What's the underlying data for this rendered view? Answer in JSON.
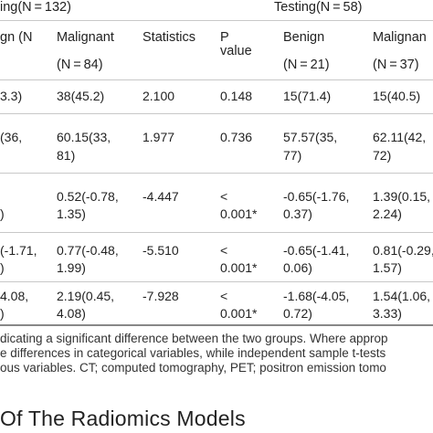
{
  "table": {
    "group_headers": {
      "training": "ing(N = 132)",
      "testing": "Testing(N = 58)"
    },
    "columns": {
      "benign_train_l1": "gn (N",
      "malignant_train_l1": "Malignant",
      "malignant_train_l2": "(N = 84)",
      "statistics": "Statistics",
      "pvalue_l1": "P",
      "pvalue_l2": "value",
      "benign_test_l1": "Benign",
      "benign_test_l2": "(N = 21)",
      "malignant_test_l1": "Malignan",
      "malignant_test_l2": "(N = 37)"
    },
    "rows": [
      {
        "benign_train": [
          "3.3)"
        ],
        "malignant_train": [
          "38(45.2)"
        ],
        "statistics": [
          "2.100"
        ],
        "pvalue": [
          "0.148"
        ],
        "benign_test": [
          "15(71.4)"
        ],
        "malignant_test": [
          "15(40.5)"
        ]
      },
      {
        "benign_train": [
          "(36,"
        ],
        "malignant_train": [
          "60.15(33,",
          "81)"
        ],
        "statistics": [
          "1.977"
        ],
        "pvalue": [
          "0.736"
        ],
        "benign_test": [
          "57.57(35,",
          "77)"
        ],
        "malignant_test": [
          "62.11(42,",
          "72)"
        ]
      },
      {
        "benign_train": [
          "",
          ")"
        ],
        "malignant_train": [
          "0.52(-0.78,",
          "1.35)"
        ],
        "statistics": [
          "-4.447"
        ],
        "pvalue": [
          "<",
          "0.001*"
        ],
        "benign_test": [
          "-0.65(-1.76,",
          "0.37)"
        ],
        "malignant_test": [
          "1.39(0.15,",
          "2.24)"
        ]
      },
      {
        "benign_train": [
          "(-1.71,",
          ")"
        ],
        "malignant_train": [
          "0.77(-0.48,",
          "1.99)"
        ],
        "statistics": [
          "-5.510"
        ],
        "pvalue": [
          "<",
          "0.001*"
        ],
        "benign_test": [
          "-0.65(-1.41,",
          "0.06)"
        ],
        "malignant_test": [
          "0.81(-0.29,",
          "1.57)"
        ]
      },
      {
        "benign_train": [
          "4.08,",
          ")"
        ],
        "malignant_train": [
          "2.19(0.45,",
          "4.08)"
        ],
        "statistics": [
          "-7.928"
        ],
        "pvalue": [
          "<",
          "0.001*"
        ],
        "benign_test": [
          "-1.68(-4.05,",
          "0.72)"
        ],
        "malignant_test": [
          "1.54(1.06,",
          "3.33)"
        ]
      }
    ]
  },
  "footnote": {
    "lines": [
      "dicating a significant difference between the two groups. Where approp",
      "e differences in categorical variables, while independent sample t-tests",
      "ous variables. CT; computed tomography, PET; positron emission tomo"
    ]
  },
  "section": {
    "heading": "Of The Radiomics Models"
  }
}
